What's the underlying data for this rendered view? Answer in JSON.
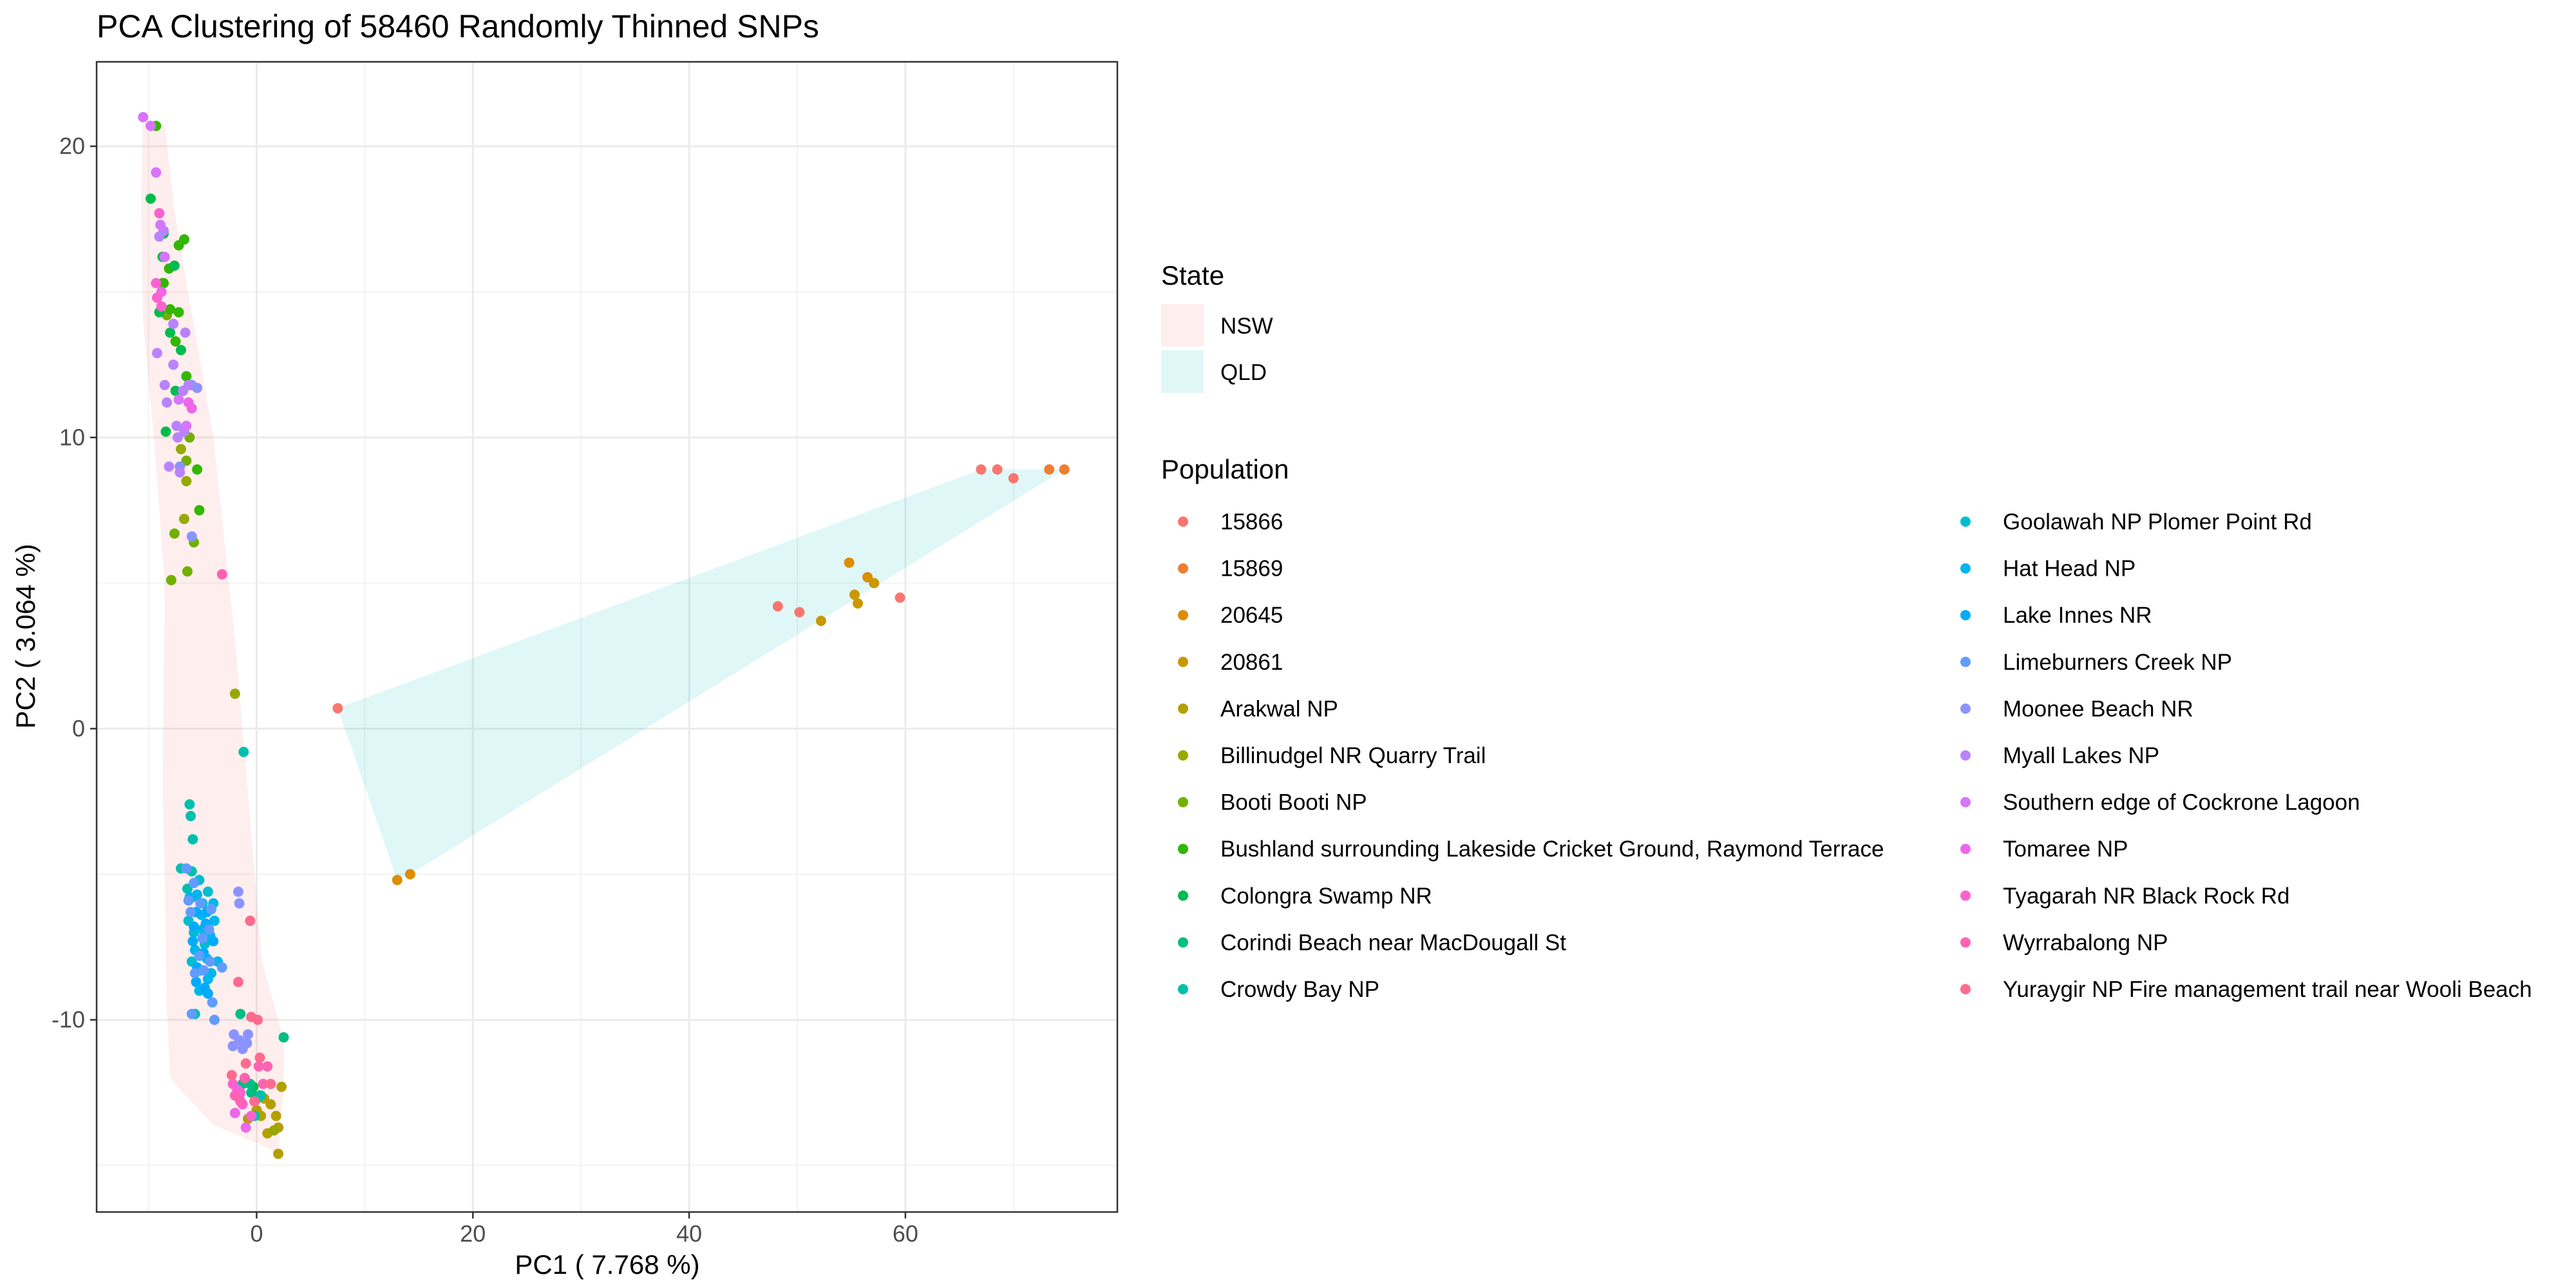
{
  "chart_data": {
    "type": "scatter",
    "title": "PCA Clustering of 58460 Randomly Thinned SNPs",
    "xlabel": "PC1 ( 7.768 %)",
    "ylabel": "PC2 ( 3.064 %)",
    "xlim": [
      -14.8,
      79.6
    ],
    "ylim": [
      -16.6,
      22.9
    ],
    "x_ticks": [
      0,
      20,
      40,
      60
    ],
    "y_ticks": [
      -10,
      0,
      10,
      20
    ],
    "grid": true,
    "legend_position": "right",
    "hulls": {
      "legend_title": "State",
      "items": [
        {
          "name": "NSW",
          "color": "#F8766D",
          "polygon": [
            [
              -10.5,
              21.0
            ],
            [
              -8.5,
              20.7
            ],
            [
              -7.5,
              17.5
            ],
            [
              -4.0,
              10.0
            ],
            [
              -2.0,
              3.0
            ],
            [
              0.5,
              -8.0
            ],
            [
              2.5,
              -10.7
            ],
            [
              2.5,
              -12.2
            ],
            [
              2.0,
              -14.6
            ],
            [
              0.5,
              -14.3
            ],
            [
              -4.0,
              -13.6
            ],
            [
              -8.0,
              -12.0
            ],
            [
              -8.3,
              -9.5
            ],
            [
              -8.5,
              -5.0
            ],
            [
              -8.7,
              -2.0
            ],
            [
              -8.5,
              5.0
            ],
            [
              -9.5,
              10.0
            ],
            [
              -10.5,
              14.0
            ],
            [
              -10.7,
              18.0
            ]
          ]
        },
        {
          "name": "QLD",
          "color": "#00BFC4",
          "polygon": [
            [
              7.5,
              0.7
            ],
            [
              13.0,
              -5.2
            ],
            [
              14.2,
              -5.0
            ],
            [
              74.7,
              8.9
            ],
            [
              67.0,
              8.9
            ]
          ]
        }
      ]
    },
    "legend_title": "Population",
    "series": [
      {
        "name": "15866",
        "color": "#F8766D",
        "points": [
          [
            7.5,
            0.7
          ],
          [
            48.2,
            4.2
          ],
          [
            50.2,
            4.0
          ],
          [
            59.5,
            4.5
          ],
          [
            67.0,
            8.9
          ],
          [
            68.5,
            8.9
          ],
          [
            70.0,
            8.6
          ]
        ]
      },
      {
        "name": "15869",
        "color": "#EE7E32",
        "points": [
          [
            73.3,
            8.9
          ],
          [
            74.7,
            8.9
          ]
        ]
      },
      {
        "name": "20645",
        "color": "#DD8D00",
        "points": [
          [
            13.0,
            -5.2
          ],
          [
            14.2,
            -5.0
          ],
          [
            54.8,
            5.7
          ],
          [
            56.5,
            5.2
          ]
        ]
      },
      {
        "name": "20861",
        "color": "#C99800",
        "points": [
          [
            52.2,
            3.7
          ],
          [
            55.3,
            4.6
          ],
          [
            55.6,
            4.3
          ],
          [
            57.1,
            5.0
          ]
        ]
      },
      {
        "name": "Arakwal NP",
        "color": "#B3A000",
        "points": [
          [
            -0.8,
            -13.4
          ],
          [
            0.0,
            -13.1
          ],
          [
            0.4,
            -13.3
          ],
          [
            1.0,
            -13.9
          ],
          [
            1.3,
            -12.9
          ],
          [
            1.8,
            -13.3
          ],
          [
            2.0,
            -14.6
          ],
          [
            2.3,
            -12.3
          ],
          [
            2.0,
            -13.7
          ],
          [
            0.7,
            -12.7
          ]
        ]
      },
      {
        "name": "Billinudgel NR Quarry Trail",
        "color": "#97A900",
        "points": [
          [
            -6.5,
            8.5
          ],
          [
            -7.0,
            9.6
          ],
          [
            -6.7,
            7.2
          ],
          [
            -2.0,
            1.2
          ],
          [
            1.6,
            -13.8
          ]
        ]
      },
      {
        "name": "Booti Booti NP",
        "color": "#72B000",
        "points": [
          [
            -7.9,
            5.1
          ],
          [
            -7.6,
            6.7
          ],
          [
            -6.4,
            5.4
          ],
          [
            -5.8,
            6.4
          ],
          [
            -6.2,
            10.0
          ],
          [
            -6.5,
            9.2
          ],
          [
            -8.3,
            14.2
          ]
        ]
      },
      {
        "name": "Bushland surrounding Lakeside Cricket Ground, Raymond Terrace",
        "color": "#31B700",
        "points": [
          [
            -9.3,
            20.7
          ],
          [
            -8.6,
            15.3
          ],
          [
            -8.0,
            14.4
          ],
          [
            -7.5,
            13.3
          ],
          [
            -6.5,
            12.1
          ],
          [
            -7.2,
            16.6
          ],
          [
            -6.7,
            16.8
          ],
          [
            -5.5,
            8.9
          ],
          [
            -5.3,
            7.5
          ],
          [
            -8.1,
            15.8
          ],
          [
            -7.2,
            14.3
          ],
          [
            -8.7,
            15.3
          ]
        ]
      },
      {
        "name": "Colongra Swamp NR",
        "color": "#00BB4E",
        "points": [
          [
            -9.8,
            18.2
          ],
          [
            -9.0,
            14.3
          ],
          [
            -8.7,
            16.2
          ],
          [
            -8.6,
            17.0
          ],
          [
            -7.6,
            15.9
          ],
          [
            -8.0,
            13.6
          ],
          [
            -7.0,
            13.0
          ],
          [
            -7.5,
            11.6
          ],
          [
            -8.4,
            10.2
          ],
          [
            -6.1,
            11.8
          ],
          [
            -0.3,
            -12.3
          ],
          [
            0.3,
            -12.6
          ]
        ]
      },
      {
        "name": "Corindi Beach near MacDougall St",
        "color": "#00BE84",
        "points": [
          [
            -1.3,
            -12.2
          ],
          [
            -0.5,
            -12.5
          ],
          [
            -1.7,
            -12.4
          ],
          [
            2.5,
            -10.6
          ],
          [
            -1.5,
            -9.8
          ],
          [
            -0.6,
            -12.2
          ],
          [
            0.0,
            -12.7
          ]
        ]
      },
      {
        "name": "Crowdy Bay NP",
        "color": "#00C0AD",
        "points": [
          [
            -1.2,
            -0.8
          ],
          [
            -6.2,
            -2.6
          ],
          [
            -6.1,
            -3.0
          ],
          [
            -5.9,
            -3.8
          ],
          [
            -6.0,
            -4.9
          ],
          [
            -6.4,
            -5.5
          ],
          [
            -6.0,
            -5.8
          ],
          [
            -7.0,
            -4.8
          ],
          [
            -5.7,
            -9.8
          ],
          [
            -0.2,
            -13.3
          ],
          [
            0.4,
            -12.6
          ]
        ]
      },
      {
        "name": "Goolawah NP Plomer Point Rd",
        "color": "#00BDD0",
        "points": [
          [
            -5.3,
            -5.2
          ],
          [
            -5.0,
            -6.0
          ],
          [
            -4.5,
            -5.6
          ],
          [
            -6.3,
            -6.6
          ],
          [
            -5.8,
            -7.0
          ],
          [
            -4.8,
            -7.4
          ],
          [
            -6.0,
            -8.0
          ]
        ]
      },
      {
        "name": "Hat Head NP",
        "color": "#00B6EB",
        "points": [
          [
            -5.5,
            -5.7
          ],
          [
            -5.1,
            -6.4
          ],
          [
            -4.0,
            -6.0
          ],
          [
            -5.0,
            -6.9
          ],
          [
            -4.3,
            -7.1
          ],
          [
            -5.7,
            -7.6
          ],
          [
            -4.6,
            -7.9
          ],
          [
            -5.2,
            -8.3
          ],
          [
            -4.5,
            -8.6
          ],
          [
            -5.3,
            -9.0
          ],
          [
            -4.2,
            -8.4
          ],
          [
            -3.9,
            -6.6
          ],
          [
            -3.6,
            -8.0
          ]
        ]
      },
      {
        "name": "Lake Innes NR",
        "color": "#00ABFD",
        "points": [
          [
            -6.2,
            -5.8
          ],
          [
            -5.6,
            -6.3
          ],
          [
            -4.7,
            -6.7
          ],
          [
            -5.9,
            -7.3
          ],
          [
            -4.9,
            -7.7
          ],
          [
            -5.5,
            -8.2
          ],
          [
            -4.5,
            -9.1
          ],
          [
            -4.6,
            -6.3
          ],
          [
            -5.8,
            -6.8
          ],
          [
            -4.0,
            -7.3
          ],
          [
            -4.8,
            -8.9
          ],
          [
            -5.6,
            -8.7
          ]
        ]
      },
      {
        "name": "Limeburners Creek NP",
        "color": "#619CFF",
        "points": [
          [
            -6.5,
            -4.8
          ],
          [
            -5.8,
            -5.3
          ],
          [
            -6.3,
            -5.9
          ],
          [
            -4.2,
            -6.2
          ],
          [
            -4.9,
            -8.3
          ],
          [
            -5.3,
            -7.8
          ],
          [
            -3.2,
            -8.2
          ],
          [
            -4.1,
            -9.4
          ],
          [
            -3.9,
            -10.0
          ],
          [
            -6.0,
            -9.8
          ],
          [
            -4.4,
            -6.9
          ],
          [
            -5.2,
            -6.0
          ],
          [
            -5.0,
            -7.2
          ],
          [
            -4.3,
            -8.0
          ],
          [
            -5.7,
            -8.4
          ],
          [
            -6.1,
            -6.3
          ]
        ]
      },
      {
        "name": "Moonee Beach NR",
        "color": "#8B93FF",
        "points": [
          [
            -1.7,
            -5.6
          ],
          [
            -1.6,
            -6.0
          ],
          [
            -2.1,
            -10.5
          ],
          [
            -1.6,
            -10.7
          ],
          [
            -0.9,
            -10.8
          ],
          [
            -1.3,
            -11.0
          ],
          [
            -0.8,
            -10.5
          ],
          [
            -2.2,
            -10.9
          ],
          [
            -6.0,
            11.8
          ],
          [
            -5.5,
            11.7
          ],
          [
            -7.1,
            9.0
          ],
          [
            -6.0,
            6.6
          ]
        ]
      },
      {
        "name": "Myall Lakes NP",
        "color": "#B983FF",
        "points": [
          [
            -8.6,
            17.1
          ],
          [
            -9.0,
            16.9
          ],
          [
            -8.5,
            11.8
          ],
          [
            -9.2,
            12.9
          ],
          [
            -7.7,
            12.5
          ],
          [
            -7.4,
            10.4
          ],
          [
            -6.7,
            10.2
          ],
          [
            -7.3,
            10.0
          ],
          [
            -8.3,
            11.2
          ],
          [
            -6.8,
            11.6
          ],
          [
            -7.7,
            13.9
          ],
          [
            -6.6,
            13.6
          ],
          [
            -6.3,
            11.8
          ],
          [
            -8.1,
            9.0
          ],
          [
            -7.1,
            8.8
          ]
        ]
      },
      {
        "name": "Southern edge of Cockrone Lagoon",
        "color": "#D774FD",
        "points": [
          [
            -10.5,
            21.0
          ],
          [
            -9.8,
            20.7
          ],
          [
            -9.3,
            19.1
          ],
          [
            -8.9,
            17.3
          ],
          [
            -8.5,
            16.2
          ],
          [
            -7.2,
            11.3
          ],
          [
            -6.5,
            10.4
          ]
        ]
      },
      {
        "name": "Tomaree NP",
        "color": "#EE67EA",
        "points": [
          [
            -6.3,
            11.2
          ],
          [
            -6.0,
            11.0
          ],
          [
            -8.8,
            15.0
          ],
          [
            -1.6,
            -12.7
          ],
          [
            -2.0,
            -13.2
          ],
          [
            -1.0,
            -13.7
          ],
          [
            -1.8,
            -12.4
          ]
        ]
      },
      {
        "name": "Tyagarah NR Black Rock Rd",
        "color": "#FD61D1",
        "points": [
          [
            -9.0,
            17.7
          ],
          [
            -8.8,
            14.5
          ],
          [
            -9.3,
            15.3
          ],
          [
            -2.2,
            -12.2
          ],
          [
            -1.3,
            -12.9
          ],
          [
            -0.5,
            -13.3
          ],
          [
            -1.5,
            -12.5
          ],
          [
            -9.2,
            14.8
          ]
        ]
      },
      {
        "name": "Wyrrabalong NP",
        "color": "#FF62B2",
        "points": [
          [
            -3.2,
            5.3
          ],
          [
            -2.0,
            -12.6
          ],
          [
            -1.1,
            -12.0
          ],
          [
            0.2,
            -11.6
          ],
          [
            1.0,
            -11.6
          ],
          [
            0.6,
            -12.2
          ],
          [
            -1.5,
            -12.8
          ]
        ]
      },
      {
        "name": "Yuraygir NP Fire management trail near Wooli Beach",
        "color": "#FF6A8F",
        "points": [
          [
            -0.6,
            -6.6
          ],
          [
            -1.7,
            -8.7
          ],
          [
            0.1,
            -10.0
          ],
          [
            -0.5,
            -9.9
          ],
          [
            0.3,
            -11.3
          ],
          [
            1.3,
            -12.2
          ],
          [
            -1.0,
            -11.5
          ],
          [
            -0.2,
            -12.8
          ],
          [
            -2.3,
            -11.9
          ]
        ]
      }
    ]
  }
}
